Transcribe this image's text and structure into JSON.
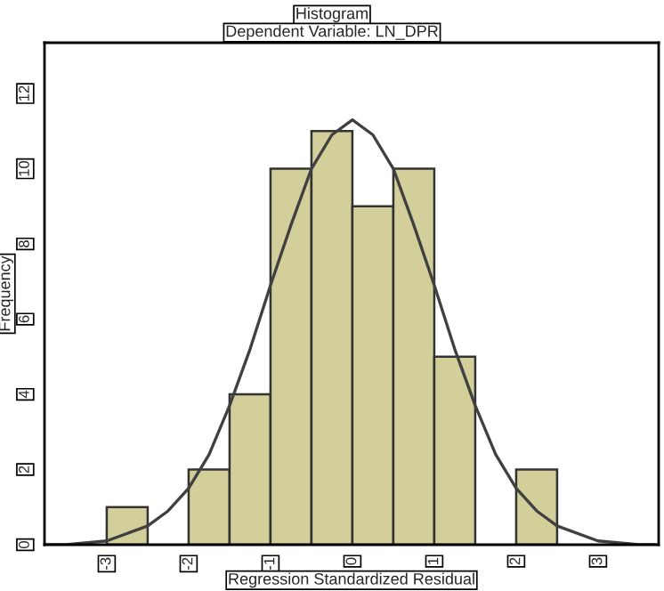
{
  "chart_data": {
    "type": "histogram",
    "title": "Histogram",
    "subtitle": "Dependent Variable: LN_DPR",
    "xlabel": "Regression Standardized Residual",
    "ylabel": "Frequency",
    "bins": [
      -3,
      -2.5,
      -2,
      -1.5,
      -1,
      -0.5,
      0,
      0.5,
      1,
      1.5,
      2,
      2.5
    ],
    "values": [
      1,
      0,
      2,
      4,
      10,
      11,
      9,
      10,
      5,
      0,
      2
    ],
    "color": "#d3cf9a",
    "series": [
      {
        "type": "line",
        "color": "#404040",
        "x": [
          -3.75,
          -3.5,
          -3.0,
          -2.5,
          -2.25,
          -2.0,
          -1.75,
          -1.5,
          -1.25,
          -1.0,
          -0.75,
          -0.5,
          -0.25,
          0.0,
          0.25,
          0.5,
          0.75,
          1.0,
          1.25,
          1.5,
          1.75,
          2.0,
          2.25,
          2.5,
          3.0,
          3.5,
          3.7
        ],
        "values": [
          0.0,
          0.0,
          0.1,
          0.5,
          0.9,
          1.5,
          2.4,
          3.7,
          5.2,
          6.9,
          8.5,
          10.0,
          10.9,
          11.3,
          10.9,
          10.0,
          8.5,
          6.9,
          5.2,
          3.7,
          2.4,
          1.5,
          0.9,
          0.5,
          0.1,
          0.0,
          0.0
        ]
      }
    ],
    "xlim": [
      -3.76,
      3.74
    ],
    "xticks": [
      -3,
      -2,
      -1,
      0,
      1,
      2,
      3
    ],
    "ylim": [
      0,
      13.35
    ],
    "yticks": [
      0,
      2,
      4,
      6,
      8,
      10,
      12
    ],
    "grid": false,
    "legend": false
  }
}
